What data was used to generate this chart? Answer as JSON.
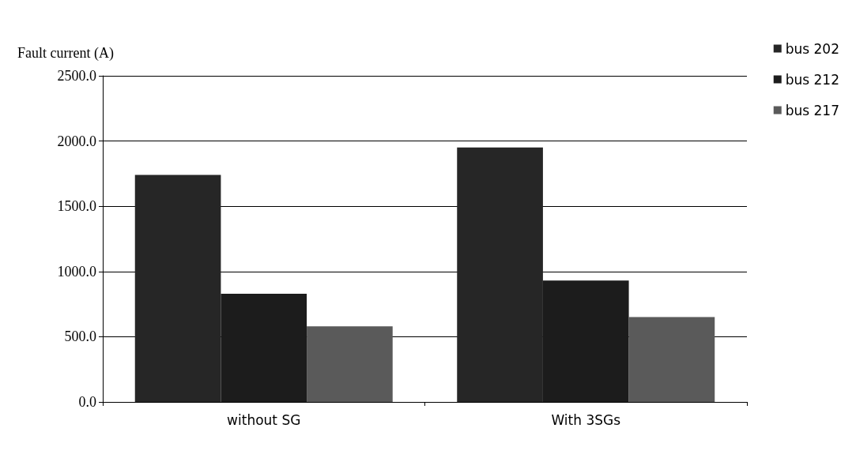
{
  "chart_data": {
    "type": "bar",
    "ylabel": "Fault current (A)",
    "categories": [
      "without SG",
      "With 3SGs"
    ],
    "series": [
      {
        "name": "bus 202",
        "color": "#262626",
        "values": [
          1740,
          1950
        ]
      },
      {
        "name": "bus 212",
        "color": "#1c1c1c",
        "values": [
          830,
          930
        ]
      },
      {
        "name": "bus 217",
        "color": "#5a5a5a",
        "values": [
          580,
          650
        ]
      }
    ],
    "ylim": [
      0,
      2500
    ],
    "yticks": [
      {
        "value": 0,
        "label": "0.0"
      },
      {
        "value": 500,
        "label": "500.0"
      },
      {
        "value": 1000,
        "label": "1000.0"
      },
      {
        "value": 1500,
        "label": "1500.0"
      },
      {
        "value": 2000,
        "label": "2000.0"
      },
      {
        "value": 2500,
        "label": "2500.0"
      }
    ],
    "grid": "y",
    "legend": "right"
  }
}
